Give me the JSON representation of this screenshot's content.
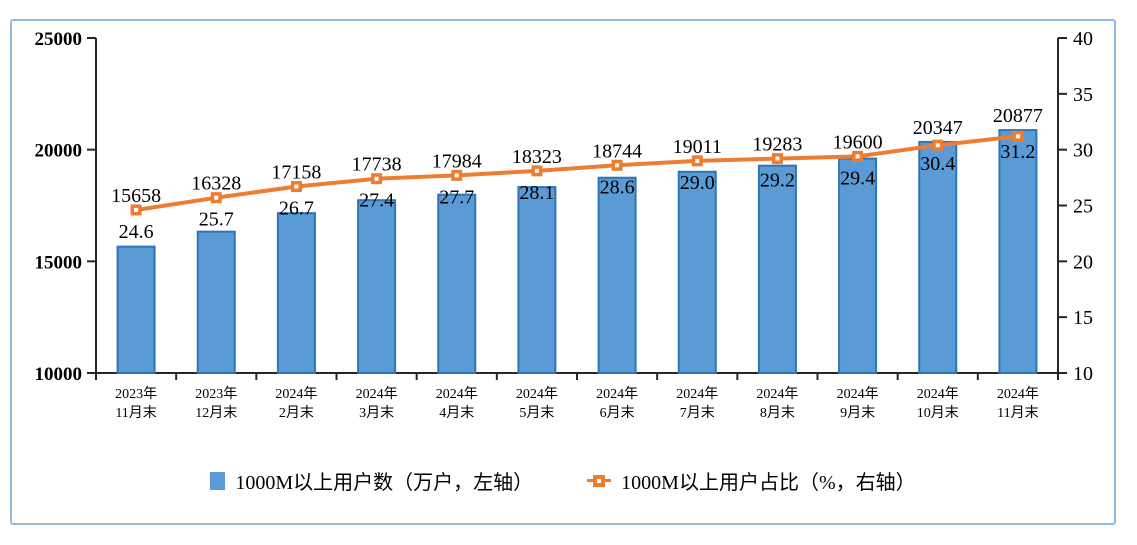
{
  "chart_data": {
    "type": "bar+line-combo",
    "title": "",
    "categories": [
      [
        "2023年",
        "11月末"
      ],
      [
        "2023年",
        "12月末"
      ],
      [
        "2024年",
        "2月末"
      ],
      [
        "2024年",
        "3月末"
      ],
      [
        "2024年",
        "4月末"
      ],
      [
        "2024年",
        "5月末"
      ],
      [
        "2024年",
        "6月末"
      ],
      [
        "2024年",
        "7月末"
      ],
      [
        "2024年",
        "8月末"
      ],
      [
        "2024年",
        "9月末"
      ],
      [
        "2024年",
        "10月末"
      ],
      [
        "2024年",
        "11月末"
      ]
    ],
    "series": [
      {
        "name": "1000M以上用户数（万户，左轴）",
        "type": "bar",
        "axis": "left",
        "values": [
          15658,
          16328,
          17158,
          17738,
          17984,
          18323,
          18744,
          19011,
          19283,
          19600,
          20347,
          20877
        ],
        "color": "#5B9BD5",
        "border_color": "#2E75B6"
      },
      {
        "name": "1000M以上用户占比（%，右轴）",
        "type": "line",
        "axis": "right",
        "values": [
          24.6,
          25.7,
          26.7,
          27.4,
          27.7,
          28.1,
          28.6,
          29.0,
          29.2,
          29.4,
          30.4,
          31.2
        ],
        "color": "#ED7D31",
        "marker": "square-hollow-center",
        "value_decimals": 1
      }
    ],
    "left_axis": {
      "min": 10000,
      "max": 25000,
      "ticks": [
        10000,
        15000,
        20000,
        25000
      ]
    },
    "right_axis": {
      "min": 10,
      "max": 40,
      "ticks": [
        10,
        15,
        20,
        25,
        30,
        35,
        40
      ]
    },
    "grid": "off",
    "legend_position": "bottom-center",
    "axis_color": "#262626",
    "frame_border_color": "#92BCE2"
  }
}
